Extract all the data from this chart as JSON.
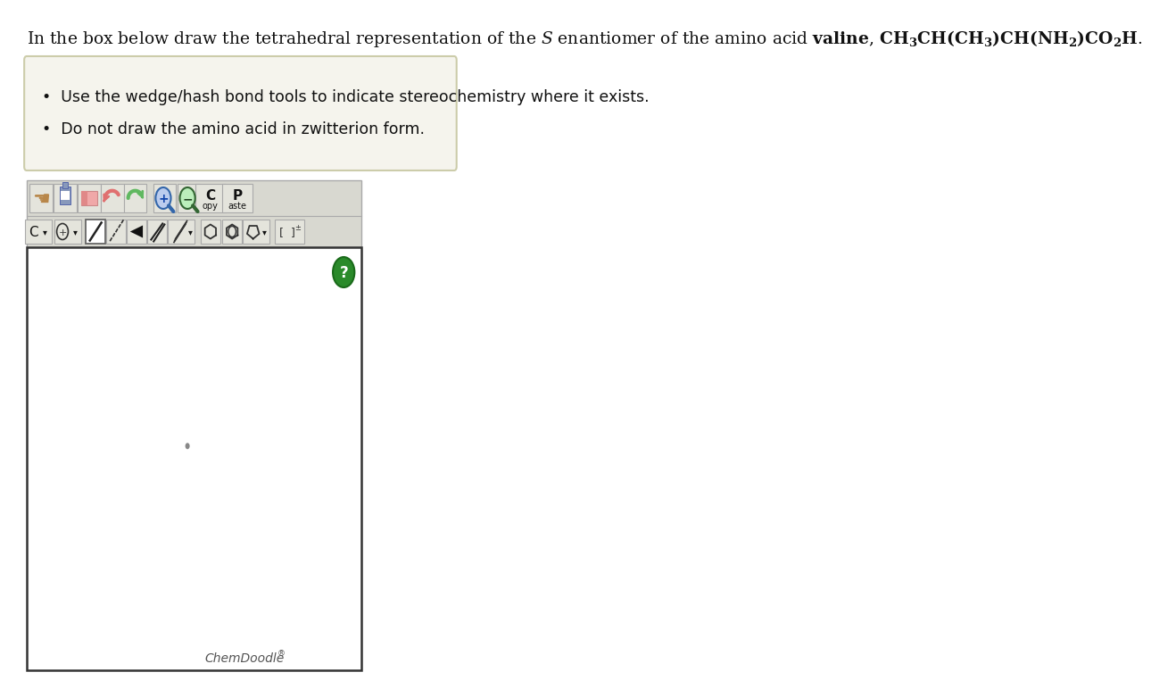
{
  "title_text": "In the box below draw the tetrahedral representation of the $\\mathit{S}$ enantiomer of the amino acid $\\mathbf{valine}$, $\\mathbf{CH_3CH(CH_3)CH(NH_2)CO_2H}$.",
  "bullet1": "Use the wedge/hash bond tools to indicate stereochemistry where it exists.",
  "bullet2": "Do not draw the amino acid in zwitterion form.",
  "chemdoodle_label": "ChemDoodle",
  "bg_color": "#ffffff",
  "instruction_box_color": "#f5f4ed",
  "instruction_box_border": "#ccccaa",
  "canvas_border_color": "#333333",
  "toolbar_bg_color": "#d8d8d0",
  "dot_color": "#888888",
  "help_button_color": "#2a8a2a",
  "help_button_border": "#1a6a1a"
}
